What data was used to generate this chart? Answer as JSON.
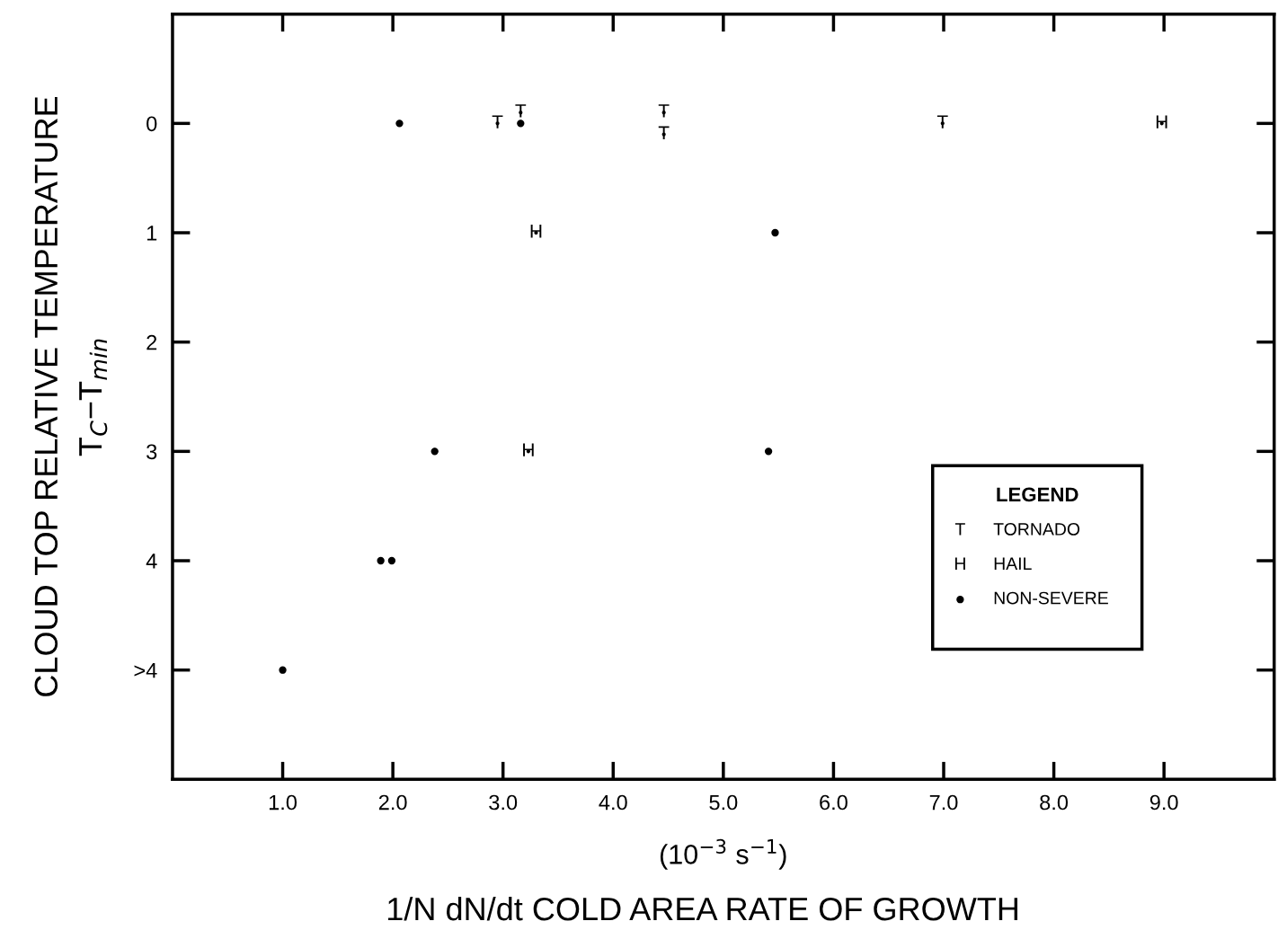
{
  "chart_data": {
    "type": "scatter",
    "xlabel": "(10$^{−3}$ s$^{−1}$)",
    "ylabel": "CLOUD TOP RELATIVE TEMPERATURE\nT$_{C}$−T$_{min}$",
    "annotations": [
      "1/N dN/dt COLD AREA RATE OF GROWTH"
    ],
    "legend_title": "LEGEND",
    "series": [
      {
        "name": "TORNADO",
        "color": "#000000",
        "value_labels": [
          "T",
          "T",
          "T",
          "T",
          "T"
        ],
        "x": [
          2.95,
          3.16,
          4.46,
          4.46,
          6.99
        ],
        "values": [
          0,
          -0.1,
          -0.1,
          0.1,
          0
        ]
      },
      {
        "name": "HAIL",
        "color": "#000000",
        "value_labels": [
          "H",
          "H",
          "H"
        ],
        "x": [
          8.98,
          3.3,
          3.23
        ],
        "values": [
          0,
          1,
          3
        ]
      },
      {
        "name": "NON-SEVERE",
        "color": "#000000",
        "marker": "circle",
        "x": [
          2.06,
          3.16,
          5.47,
          2.38,
          5.41,
          1.89,
          1.99,
          1.0
        ],
        "values": [
          0,
          0,
          1,
          3,
          3,
          4,
          4,
          5
        ]
      }
    ],
    "xlim": [
      0,
      10
    ],
    "xticks": [
      {
        "value": 1,
        "label": "1.0"
      },
      {
        "value": 2,
        "label": "2.0"
      },
      {
        "value": 3,
        "label": "3.0"
      },
      {
        "value": 4,
        "label": "4.0"
      },
      {
        "value": 5,
        "label": "5.0"
      },
      {
        "value": 6,
        "label": "6.0"
      },
      {
        "value": 7,
        "label": "7.0"
      },
      {
        "value": 8,
        "label": "8.0"
      },
      {
        "value": 9,
        "label": "9.0"
      }
    ],
    "ylim": [
      6,
      -1
    ],
    "yticks": [
      0,
      1,
      2,
      3,
      4,
      {
        "value": 5,
        "label": ">4"
      }
    ],
    "grid": false,
    "legend": "bottom right"
  }
}
